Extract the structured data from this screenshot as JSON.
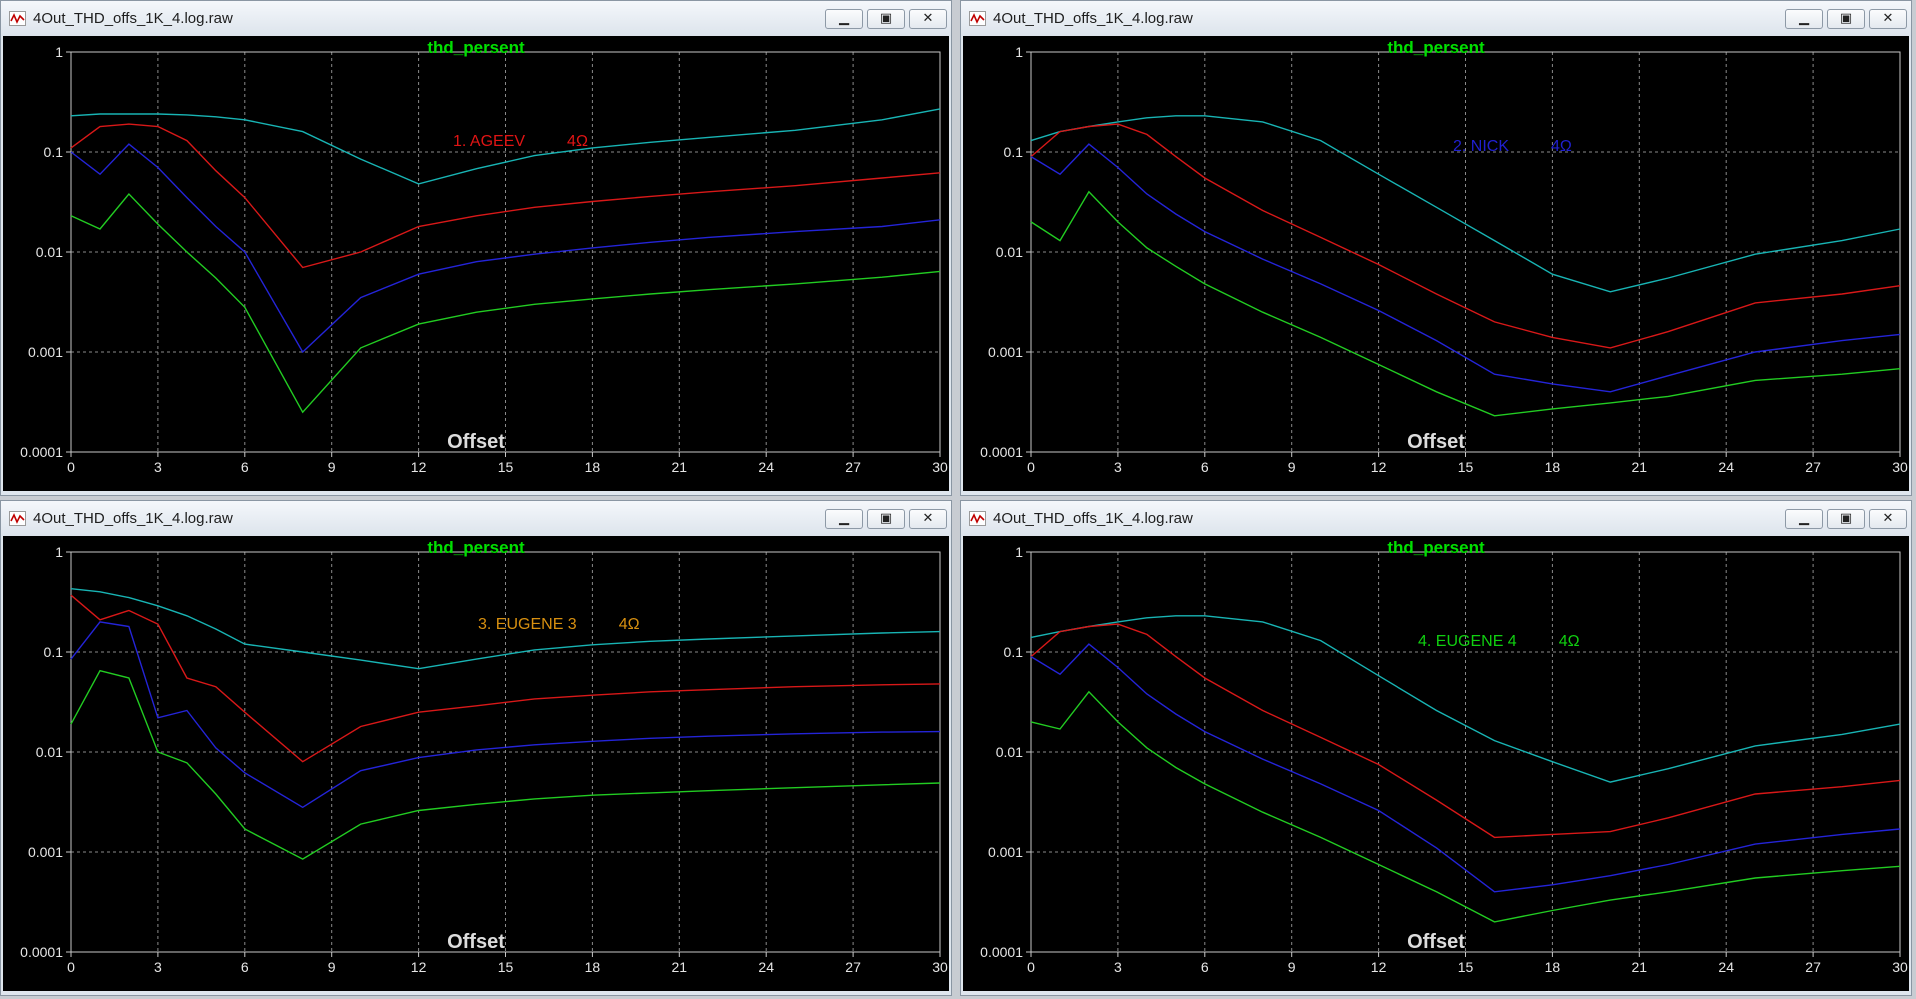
{
  "common": {
    "window_title": "4Out_THD_offs_1K_4.log.raw",
    "trace_label": "thd_persent",
    "x_axis_label": "Offset",
    "minimize_glyph": "▁",
    "restore_glyph": "▣",
    "close_glyph": "✕",
    "app_icon": "waveform-icon",
    "colors": {
      "background": "#000000",
      "trace_label": "#00e000",
      "grid": "#8a8a8a",
      "cyan": "#18b4b4",
      "red": "#d81818",
      "blue": "#2424d8",
      "green": "#22cc22"
    }
  },
  "windows": [
    {
      "annotation": {
        "text": "1. AGEEV",
        "ohm": "4Ω",
        "color": "#e01414"
      },
      "chart_data": {
        "type": "line",
        "title": "thd_persent",
        "xlabel": "Offset",
        "ylabel": "",
        "x_ticks": [
          "0",
          "3",
          "6",
          "9",
          "12",
          "15",
          "18",
          "21",
          "24",
          "27",
          "30"
        ],
        "y_ticks": [
          "1",
          "0.1",
          "0.01",
          "0.001",
          "0.0001"
        ],
        "xlim": [
          0,
          30
        ],
        "ylim": [
          0.0001,
          1
        ],
        "y_scale": "log",
        "grid": true,
        "series": [
          {
            "color": "#18b4b4",
            "x": [
              0,
              1,
              2,
              3,
              4,
              5,
              6,
              8,
              10,
              12,
              14,
              16,
              18,
              20,
              22,
              25,
              28,
              30
            ],
            "y": [
              0.23,
              0.24,
              0.24,
              0.24,
              0.235,
              0.225,
              0.21,
              0.16,
              0.085,
              0.048,
              0.068,
              0.092,
              0.11,
              0.125,
              0.14,
              0.165,
              0.21,
              0.27
            ]
          },
          {
            "color": "#d81818",
            "x": [
              0,
              1,
              2,
              3,
              4,
              5,
              6,
              8,
              10,
              12,
              14,
              16,
              18,
              20,
              22,
              25,
              28,
              30
            ],
            "y": [
              0.11,
              0.18,
              0.19,
              0.18,
              0.13,
              0.065,
              0.035,
              0.007,
              0.01,
              0.018,
              0.023,
              0.028,
              0.032,
              0.036,
              0.04,
              0.046,
              0.055,
              0.062
            ]
          },
          {
            "color": "#2424d8",
            "x": [
              0,
              1,
              2,
              3,
              4,
              5,
              6,
              8,
              10,
              12,
              14,
              16,
              18,
              20,
              22,
              25,
              28,
              30
            ],
            "y": [
              0.1,
              0.06,
              0.12,
              0.07,
              0.035,
              0.018,
              0.01,
              0.001,
              0.0035,
              0.006,
              0.008,
              0.0095,
              0.011,
              0.0125,
              0.014,
              0.016,
              0.018,
              0.021
            ]
          },
          {
            "color": "#22cc22",
            "x": [
              0,
              1,
              2,
              3,
              4,
              5,
              6,
              8,
              10,
              12,
              14,
              16,
              18,
              20,
              22,
              25,
              28,
              30
            ],
            "y": [
              0.023,
              0.017,
              0.038,
              0.019,
              0.01,
              0.0055,
              0.0028,
              0.00025,
              0.0011,
              0.0019,
              0.0025,
              0.003,
              0.0034,
              0.0038,
              0.0042,
              0.0048,
              0.0056,
              0.0064
            ]
          }
        ]
      }
    },
    {
      "annotation": {
        "text": "2. NICK",
        "ohm": "4Ω",
        "color": "#2020d0"
      },
      "chart_data": {
        "type": "line",
        "title": "thd_persent",
        "xlabel": "Offset",
        "ylabel": "",
        "x_ticks": [
          "0",
          "3",
          "6",
          "9",
          "12",
          "15",
          "18",
          "21",
          "24",
          "27",
          "30"
        ],
        "y_ticks": [
          "1",
          "0.1",
          "0.01",
          "0.001",
          "0.0001"
        ],
        "xlim": [
          0,
          30
        ],
        "ylim": [
          0.0001,
          1
        ],
        "y_scale": "log",
        "grid": true,
        "series": [
          {
            "color": "#18b4b4",
            "x": [
              0,
              1,
              2,
              3,
              4,
              5,
              6,
              8,
              10,
              12,
              14,
              16,
              18,
              20,
              22,
              25,
              28,
              30
            ],
            "y": [
              0.13,
              0.16,
              0.18,
              0.2,
              0.22,
              0.23,
              0.23,
              0.2,
              0.13,
              0.06,
              0.028,
              0.013,
              0.006,
              0.004,
              0.0055,
              0.0095,
              0.013,
              0.017
            ]
          },
          {
            "color": "#d81818",
            "x": [
              0,
              1,
              2,
              3,
              4,
              5,
              6,
              8,
              10,
              12,
              14,
              16,
              18,
              20,
              22,
              25,
              28,
              30
            ],
            "y": [
              0.09,
              0.16,
              0.18,
              0.19,
              0.15,
              0.09,
              0.055,
              0.026,
              0.014,
              0.0075,
              0.0038,
              0.002,
              0.0014,
              0.0011,
              0.0016,
              0.0031,
              0.0038,
              0.0046
            ]
          },
          {
            "color": "#2424d8",
            "x": [
              0,
              1,
              2,
              3,
              4,
              5,
              6,
              8,
              10,
              12,
              14,
              16,
              18,
              20,
              22,
              25,
              28,
              30
            ],
            "y": [
              0.09,
              0.06,
              0.12,
              0.07,
              0.038,
              0.024,
              0.016,
              0.0085,
              0.0048,
              0.0026,
              0.0013,
              0.0006,
              0.00048,
              0.0004,
              0.00058,
              0.001,
              0.0013,
              0.0015
            ]
          },
          {
            "color": "#22cc22",
            "x": [
              0,
              1,
              2,
              3,
              4,
              5,
              6,
              8,
              10,
              12,
              14,
              16,
              18,
              20,
              22,
              25,
              28,
              30
            ],
            "y": [
              0.02,
              0.013,
              0.04,
              0.02,
              0.011,
              0.0072,
              0.0048,
              0.0025,
              0.0014,
              0.00075,
              0.0004,
              0.00023,
              0.00027,
              0.00031,
              0.00036,
              0.00052,
              0.0006,
              0.00068
            ]
          }
        ]
      }
    },
    {
      "annotation": {
        "text": "3. EUGENE 3",
        "ohm": "4Ω",
        "color": "#d89010"
      },
      "chart_data": {
        "type": "line",
        "title": "thd_persent",
        "xlabel": "Offset",
        "ylabel": "",
        "x_ticks": [
          "0",
          "3",
          "6",
          "9",
          "12",
          "15",
          "18",
          "21",
          "24",
          "27",
          "30"
        ],
        "y_ticks": [
          "1",
          "0.1",
          "0.01",
          "0.001",
          "0.0001"
        ],
        "xlim": [
          0,
          30
        ],
        "ylim": [
          0.0001,
          1
        ],
        "y_scale": "log",
        "grid": true,
        "series": [
          {
            "color": "#18b4b4",
            "x": [
              0,
              1,
              2,
              3,
              4,
              5,
              6,
              8,
              10,
              12,
              14,
              16,
              18,
              20,
              22,
              25,
              28,
              30
            ],
            "y": [
              0.43,
              0.4,
              0.35,
              0.29,
              0.23,
              0.17,
              0.12,
              0.1,
              0.083,
              0.068,
              0.085,
              0.105,
              0.118,
              0.128,
              0.135,
              0.145,
              0.155,
              0.16
            ]
          },
          {
            "color": "#d81818",
            "x": [
              0,
              1,
              2,
              3,
              4,
              5,
              6,
              8,
              10,
              12,
              14,
              16,
              18,
              20,
              22,
              25,
              28,
              30
            ],
            "y": [
              0.37,
              0.21,
              0.26,
              0.19,
              0.055,
              0.045,
              0.025,
              0.008,
              0.018,
              0.025,
              0.029,
              0.034,
              0.037,
              0.04,
              0.042,
              0.045,
              0.047,
              0.048
            ]
          },
          {
            "color": "#2424d8",
            "x": [
              0,
              1,
              2,
              3,
              4,
              5,
              6,
              8,
              10,
              12,
              14,
              16,
              18,
              20,
              22,
              25,
              28,
              30
            ],
            "y": [
              0.085,
              0.2,
              0.18,
              0.022,
              0.026,
              0.011,
              0.0062,
              0.0028,
              0.0065,
              0.0088,
              0.0105,
              0.0118,
              0.0128,
              0.0137,
              0.0144,
              0.0152,
              0.0158,
              0.016
            ]
          },
          {
            "color": "#22cc22",
            "x": [
              0,
              1,
              2,
              3,
              4,
              5,
              6,
              8,
              10,
              12,
              14,
              16,
              18,
              20,
              22,
              25,
              28,
              30
            ],
            "y": [
              0.019,
              0.065,
              0.055,
              0.01,
              0.0078,
              0.0038,
              0.0017,
              0.00085,
              0.0019,
              0.0026,
              0.003,
              0.0034,
              0.0037,
              0.0039,
              0.0041,
              0.0044,
              0.0047,
              0.0049
            ]
          }
        ]
      }
    },
    {
      "annotation": {
        "text": "4. EUGENE 4",
        "ohm": "4Ω",
        "color": "#10d010"
      },
      "chart_data": {
        "type": "line",
        "title": "thd_persent",
        "xlabel": "Offset",
        "ylabel": "",
        "x_ticks": [
          "0",
          "3",
          "6",
          "9",
          "12",
          "15",
          "18",
          "21",
          "24",
          "27",
          "30"
        ],
        "y_ticks": [
          "1",
          "0.1",
          "0.01",
          "0.001",
          "0.0001"
        ],
        "xlim": [
          0,
          30
        ],
        "ylim": [
          0.0001,
          1
        ],
        "y_scale": "log",
        "grid": true,
        "series": [
          {
            "color": "#18b4b4",
            "x": [
              0,
              1,
              2,
              3,
              4,
              5,
              6,
              8,
              10,
              12,
              14,
              16,
              18,
              20,
              22,
              25,
              28,
              30
            ],
            "y": [
              0.14,
              0.16,
              0.18,
              0.2,
              0.22,
              0.23,
              0.23,
              0.2,
              0.13,
              0.058,
              0.026,
              0.013,
              0.008,
              0.005,
              0.0068,
              0.0115,
              0.015,
              0.019
            ]
          },
          {
            "color": "#d81818",
            "x": [
              0,
              1,
              2,
              3,
              4,
              5,
              6,
              8,
              10,
              12,
              14,
              16,
              18,
              20,
              22,
              25,
              28,
              30
            ],
            "y": [
              0.09,
              0.16,
              0.18,
              0.19,
              0.15,
              0.09,
              0.055,
              0.026,
              0.014,
              0.0075,
              0.0033,
              0.0014,
              0.0015,
              0.0016,
              0.0022,
              0.0038,
              0.0045,
              0.0052
            ]
          },
          {
            "color": "#2424d8",
            "x": [
              0,
              1,
              2,
              3,
              4,
              5,
              6,
              8,
              10,
              12,
              14,
              16,
              18,
              20,
              22,
              25,
              28,
              30
            ],
            "y": [
              0.09,
              0.06,
              0.12,
              0.07,
              0.038,
              0.024,
              0.016,
              0.0085,
              0.0048,
              0.0026,
              0.0011,
              0.0004,
              0.00047,
              0.00058,
              0.00075,
              0.0012,
              0.0015,
              0.0017
            ]
          },
          {
            "color": "#22cc22",
            "x": [
              0,
              1,
              2,
              3,
              4,
              5,
              6,
              8,
              10,
              12,
              14,
              16,
              18,
              20,
              22,
              25,
              28,
              30
            ],
            "y": [
              0.02,
              0.017,
              0.04,
              0.02,
              0.011,
              0.007,
              0.0048,
              0.0025,
              0.0014,
              0.00075,
              0.0004,
              0.0002,
              0.00026,
              0.00033,
              0.0004,
              0.00055,
              0.00065,
              0.00072
            ]
          }
        ]
      }
    }
  ]
}
